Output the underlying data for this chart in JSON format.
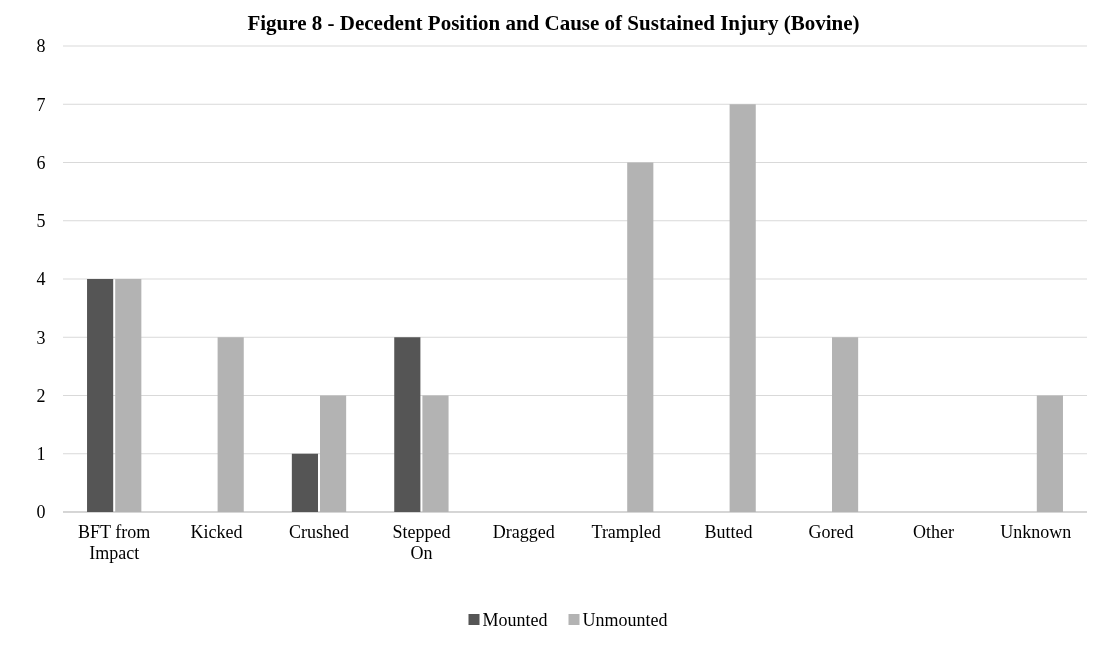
{
  "chart_data": {
    "type": "bar",
    "title": "Figure 8 - Decedent Position and Cause of Sustained Injury (Bovine)",
    "categories": [
      "BFT from Impact",
      "Kicked",
      "Crushed",
      "Stepped On",
      "Dragged",
      "Trampled",
      "Butted",
      "Gored",
      "Other",
      "Unknown"
    ],
    "series": [
      {
        "name": "Mounted",
        "color": "#555555",
        "values": [
          4,
          0,
          1,
          3,
          0,
          0,
          0,
          0,
          0,
          0
        ]
      },
      {
        "name": "Unmounted",
        "color": "#b3b3b3",
        "values": [
          4,
          3,
          2,
          2,
          0,
          6,
          7,
          3,
          0,
          2
        ]
      }
    ],
    "ylim": [
      0,
      8
    ],
    "yticks": [
      0,
      1,
      2,
      3,
      4,
      5,
      6,
      7,
      8
    ],
    "grid": "y",
    "legend": "bottom"
  }
}
